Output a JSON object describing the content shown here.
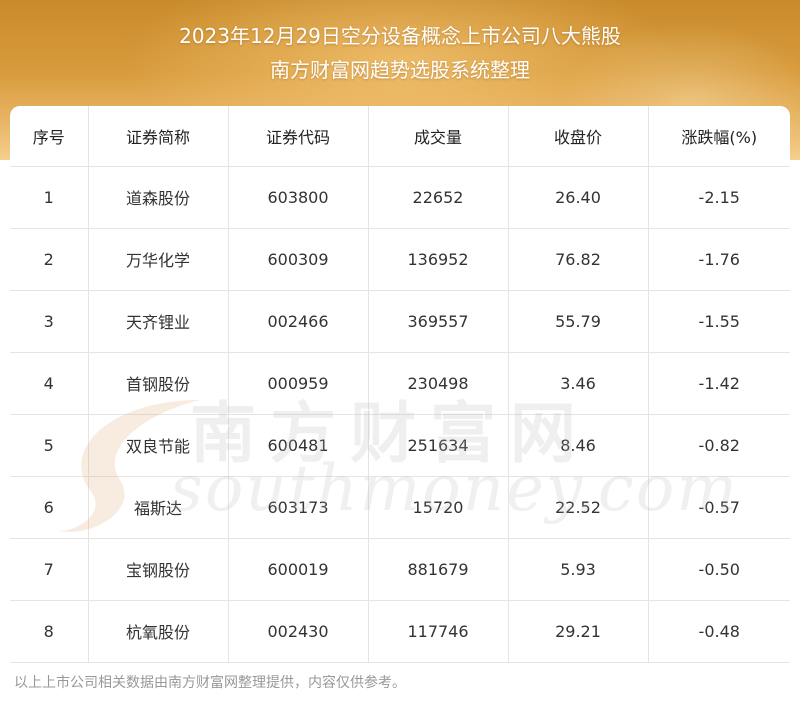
{
  "header": {
    "title_line1": "2023年12月29日空分设备概念上市公司八大熊股",
    "title_line2": "南方财富网趋势选股系统整理"
  },
  "table": {
    "columns": [
      "序号",
      "证券简称",
      "证券代码",
      "成交量",
      "收盘价",
      "涨跌幅(%)"
    ],
    "rows": [
      [
        "1",
        "道森股份",
        "603800",
        "22652",
        "26.40",
        "-2.15"
      ],
      [
        "2",
        "万华化学",
        "600309",
        "136952",
        "76.82",
        "-1.76"
      ],
      [
        "3",
        "天齐锂业",
        "002466",
        "369557",
        "55.79",
        "-1.55"
      ],
      [
        "4",
        "首钢股份",
        "000959",
        "230498",
        "3.46",
        "-1.42"
      ],
      [
        "5",
        "双良节能",
        "600481",
        "251634",
        "8.46",
        "-0.82"
      ],
      [
        "6",
        "福斯达",
        "603173",
        "15720",
        "22.52",
        "-0.57"
      ],
      [
        "7",
        "宝钢股份",
        "600019",
        "881679",
        "5.93",
        "-0.50"
      ],
      [
        "8",
        "杭氧股份",
        "002430",
        "117746",
        "29.21",
        "-0.48"
      ]
    ]
  },
  "watermark": {
    "cn": "南方财富网",
    "en": "southmoney.com"
  },
  "footer": {
    "note": "以上上市公司相关数据由南方财富网整理提供，内容仅供参考。"
  }
}
